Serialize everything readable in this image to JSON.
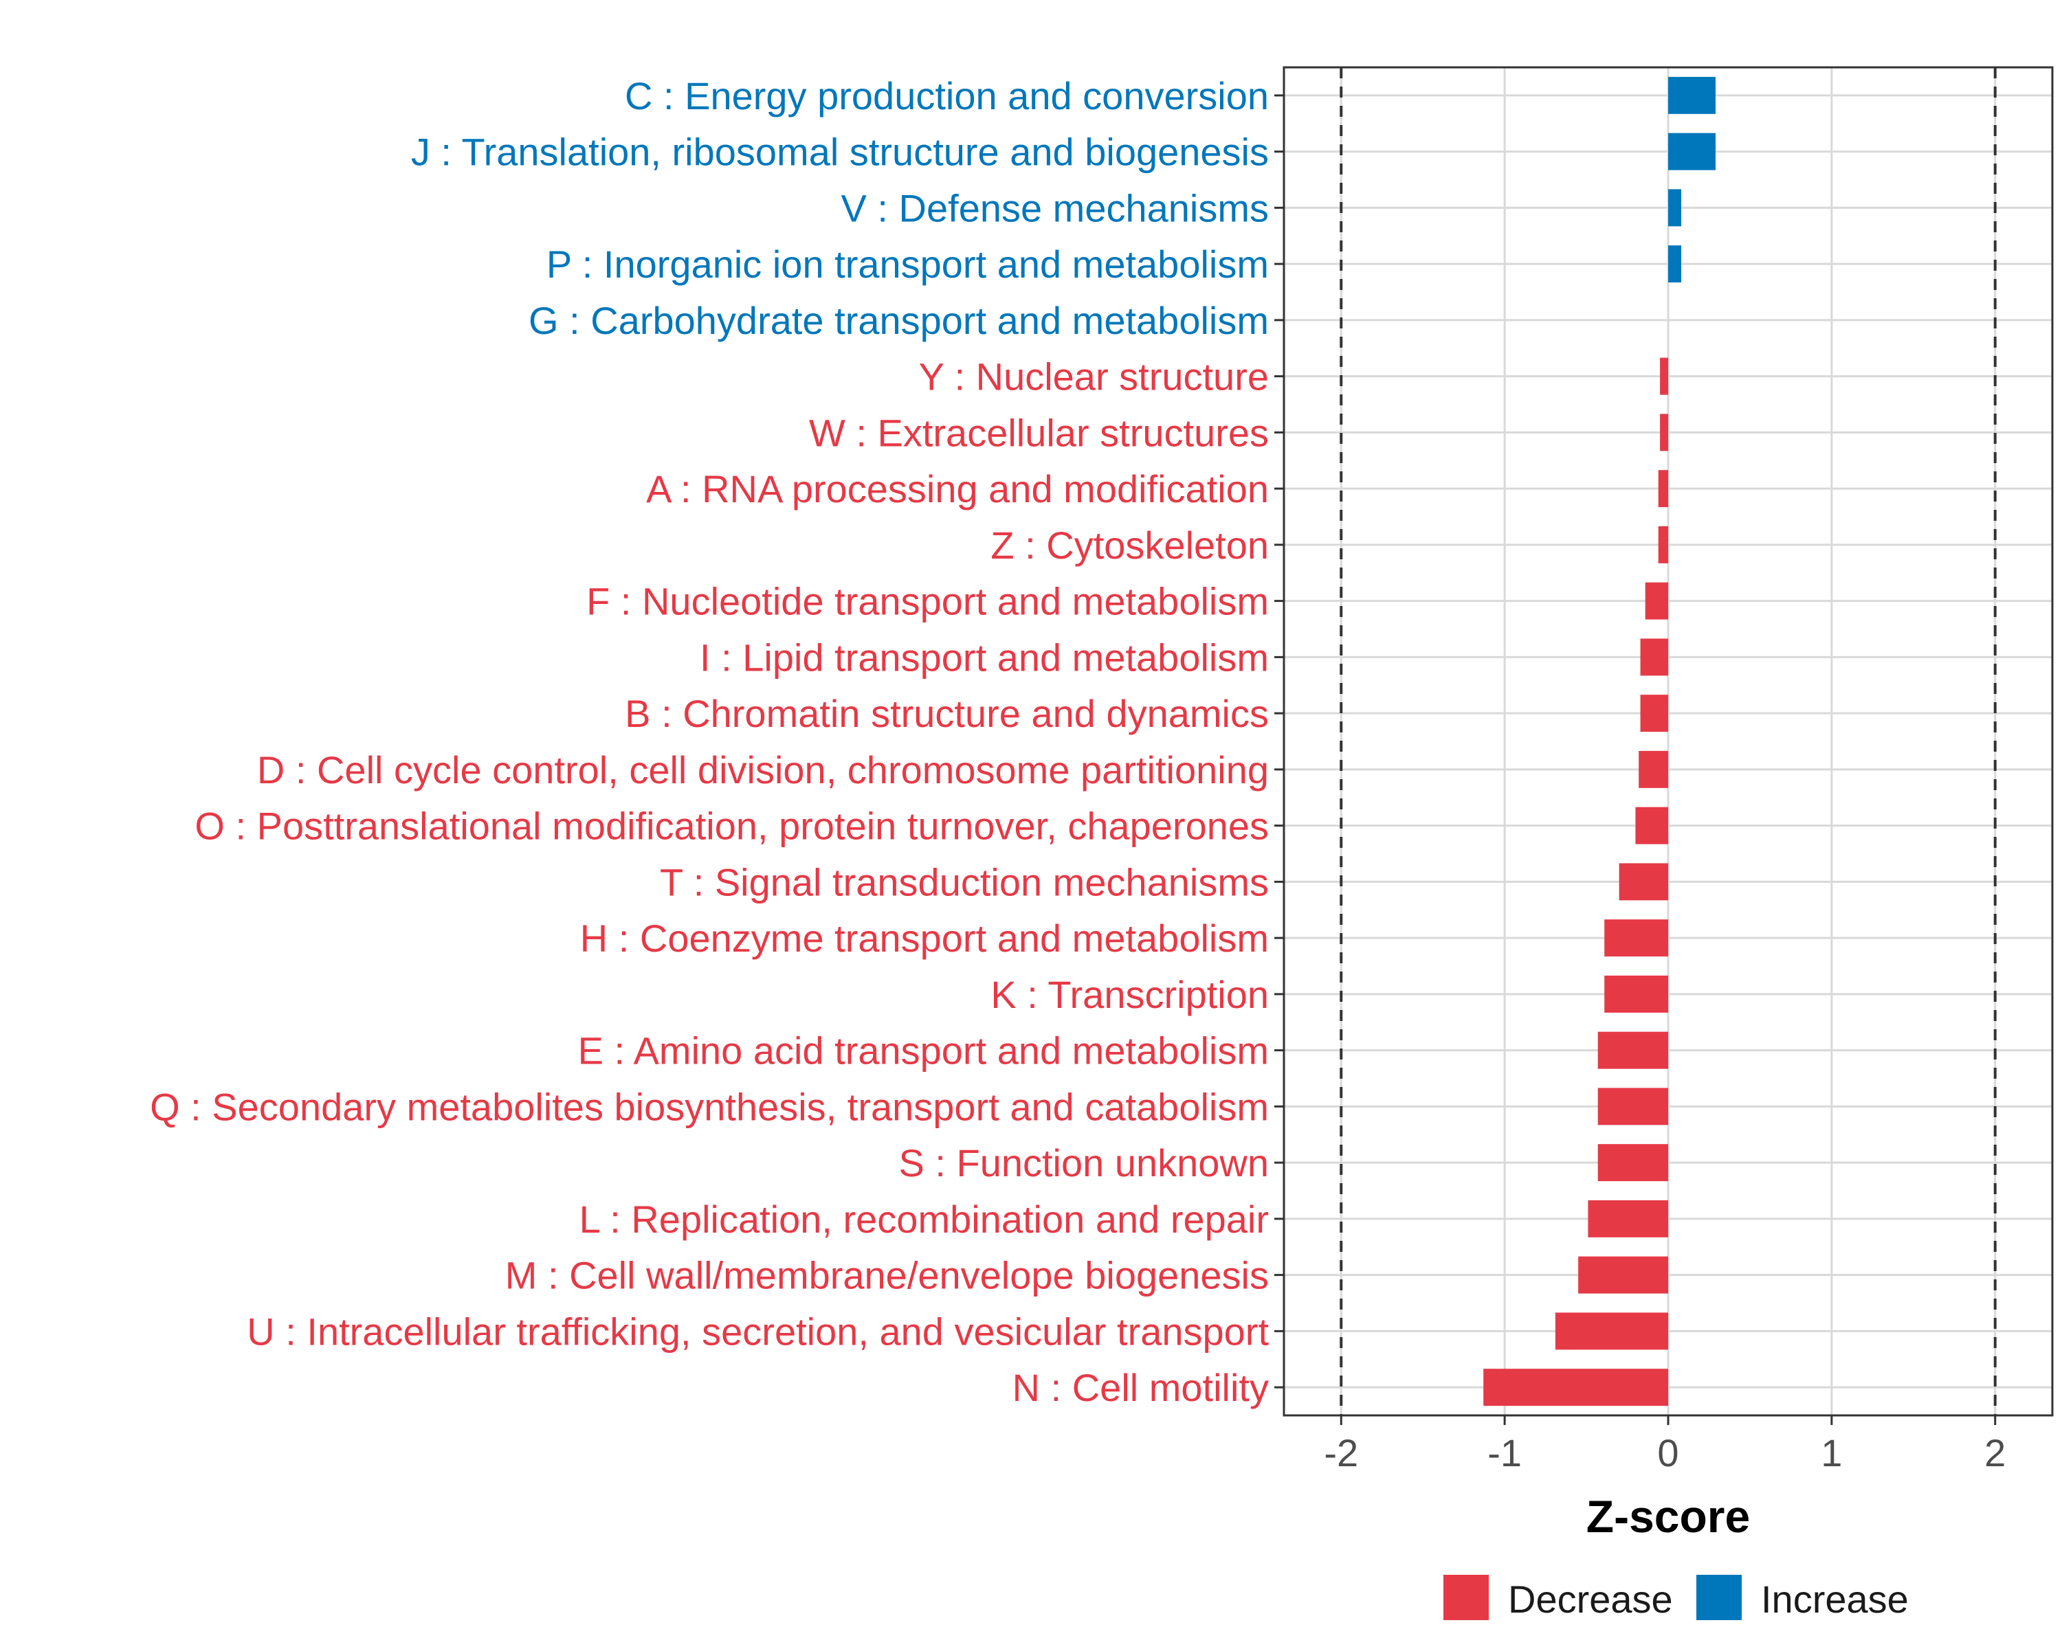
{
  "chart_data": {
    "type": "bar",
    "orientation": "horizontal",
    "title": "",
    "xlabel": "Z-score",
    "ylabel": "",
    "xlim": [
      -2.35,
      2.35
    ],
    "xticks": [
      -2,
      -1,
      0,
      1,
      2
    ],
    "xtick_labels": [
      "-2",
      "-1",
      "0",
      "1",
      "2"
    ],
    "reference_lines": [
      -2,
      2
    ],
    "grid": true,
    "categories": [
      "C : Energy production and conversion",
      "J : Translation, ribosomal structure and biogenesis",
      "V : Defense mechanisms",
      "P : Inorganic ion transport and metabolism",
      "G : Carbohydrate transport and metabolism",
      "Y : Nuclear structure",
      "W : Extracellular structures",
      "A : RNA processing and modification",
      "Z : Cytoskeleton",
      "F : Nucleotide transport and metabolism",
      "I : Lipid transport and metabolism",
      "B : Chromatin structure and dynamics",
      "D : Cell cycle control, cell division, chromosome partitioning",
      "O : Posttranslational modification, protein turnover, chaperones",
      "T : Signal transduction mechanisms",
      "H : Coenzyme transport and metabolism",
      "K : Transcription",
      "E : Amino acid transport and metabolism",
      "Q : Secondary metabolites biosynthesis, transport and catabolism",
      "S : Function unknown",
      "L : Replication, recombination and repair",
      "M : Cell wall/membrane/envelope biogenesis",
      "U : Intracellular trafficking, secretion, and vesicular transport",
      "N : Cell motility"
    ],
    "values": [
      0.29,
      0.29,
      0.08,
      0.08,
      0.0,
      -0.05,
      -0.05,
      -0.06,
      -0.06,
      -0.14,
      -0.17,
      -0.17,
      -0.18,
      -0.2,
      -0.3,
      -0.39,
      -0.39,
      -0.43,
      -0.43,
      -0.43,
      -0.49,
      -0.55,
      -0.69,
      -1.13
    ],
    "groups": [
      "Increase",
      "Increase",
      "Increase",
      "Increase",
      "Increase",
      "Decrease",
      "Decrease",
      "Decrease",
      "Decrease",
      "Decrease",
      "Decrease",
      "Decrease",
      "Decrease",
      "Decrease",
      "Decrease",
      "Decrease",
      "Decrease",
      "Decrease",
      "Decrease",
      "Decrease",
      "Decrease",
      "Decrease",
      "Decrease",
      "Decrease"
    ],
    "legend": {
      "position": "bottom",
      "entries": [
        {
          "label": "Decrease",
          "color": "#e63946"
        },
        {
          "label": "Increase",
          "color": "#0077bb"
        }
      ]
    }
  },
  "colors": {
    "decrease": "#e63946",
    "increase": "#0077bb",
    "grid": "#d9d9d9",
    "panel_border": "#333333",
    "reference_line": "#333333"
  }
}
